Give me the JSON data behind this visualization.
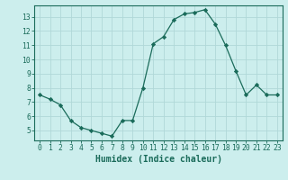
{
  "x": [
    0,
    1,
    2,
    3,
    4,
    5,
    6,
    7,
    8,
    9,
    10,
    11,
    12,
    13,
    14,
    15,
    16,
    17,
    18,
    19,
    20,
    21,
    22,
    23
  ],
  "y": [
    7.5,
    7.2,
    6.8,
    5.7,
    5.2,
    5.0,
    4.8,
    4.6,
    5.7,
    5.7,
    8.0,
    11.1,
    11.6,
    12.8,
    13.2,
    13.3,
    13.5,
    12.5,
    11.0,
    9.2,
    7.5,
    8.2,
    7.5,
    7.5
  ],
  "line_color": "#1a6b5a",
  "marker": "D",
  "marker_size": 2.2,
  "xlabel": "Humidex (Indice chaleur)",
  "xlim": [
    -0.5,
    23.5
  ],
  "ylim": [
    4.3,
    13.8
  ],
  "yticks": [
    5,
    6,
    7,
    8,
    9,
    10,
    11,
    12,
    13
  ],
  "xticks": [
    0,
    1,
    2,
    3,
    4,
    5,
    6,
    7,
    8,
    9,
    10,
    11,
    12,
    13,
    14,
    15,
    16,
    17,
    18,
    19,
    20,
    21,
    22,
    23
  ],
  "background_color": "#cceeed",
  "grid_color": "#b0d8d8",
  "text_color": "#1a6b5a",
  "tick_label_fontsize": 5.8,
  "xlabel_fontsize": 7.0
}
